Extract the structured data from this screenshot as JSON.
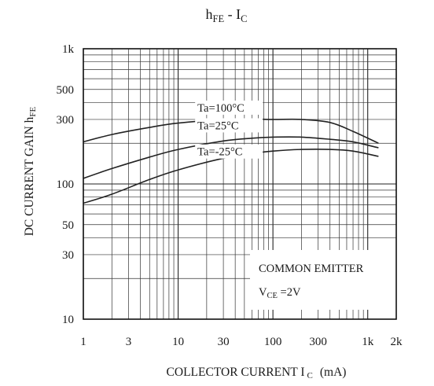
{
  "chart_data": {
    "type": "line",
    "title": {
      "main": "h",
      "main_sub": "FE",
      "separator": " - ",
      "second": "I",
      "second_sub": "C"
    },
    "xlabel": {
      "main": "COLLECTOR CURRENT I",
      "sub": "C",
      "unit": "(mA)"
    },
    "ylabel": {
      "main": "DC CURRENT GAIN h",
      "sub": "FE"
    },
    "x_scale": "log",
    "y_scale": "log",
    "xlim": [
      1,
      2000
    ],
    "ylim": [
      10,
      1000
    ],
    "x_ticks": [
      {
        "value": 1,
        "label": "1"
      },
      {
        "value": 3,
        "label": "3"
      },
      {
        "value": 10,
        "label": "10"
      },
      {
        "value": 30,
        "label": "30"
      },
      {
        "value": 100,
        "label": "100"
      },
      {
        "value": 300,
        "label": "300"
      },
      {
        "value": 1000,
        "label": "1k"
      },
      {
        "value": 2000,
        "label": "2k"
      }
    ],
    "y_ticks": [
      {
        "value": 10,
        "label": "10"
      },
      {
        "value": 30,
        "label": "30"
      },
      {
        "value": 50,
        "label": "50"
      },
      {
        "value": 100,
        "label": "100"
      },
      {
        "value": 300,
        "label": "300"
      },
      {
        "value": 500,
        "label": "500"
      },
      {
        "value": 1000,
        "label": "1k"
      }
    ],
    "grid": true,
    "series": [
      {
        "name": "Ta=100°C",
        "x": [
          1,
          2,
          5,
          10,
          30,
          60,
          100,
          200,
          400,
          700,
          1300
        ],
        "y": [
          205,
          232,
          262,
          282,
          300,
          302,
          300,
          300,
          285,
          245,
          200
        ]
      },
      {
        "name": "Ta=25°C",
        "x": [
          1,
          2,
          5,
          10,
          30,
          60,
          100,
          200,
          400,
          700,
          1300
        ],
        "y": [
          110,
          130,
          158,
          180,
          208,
          218,
          222,
          222,
          214,
          205,
          185
        ]
      },
      {
        "name": "Ta=-25°C",
        "x": [
          1,
          2,
          5,
          10,
          30,
          60,
          100,
          200,
          400,
          700,
          1300
        ],
        "y": [
          72,
          84,
          108,
          127,
          155,
          168,
          175,
          180,
          180,
          175,
          160
        ]
      }
    ],
    "annotation": {
      "line1": "COMMON EMITTER",
      "line2_main": "V",
      "line2_sub": "CE",
      "line2_rest": " =2V"
    }
  }
}
